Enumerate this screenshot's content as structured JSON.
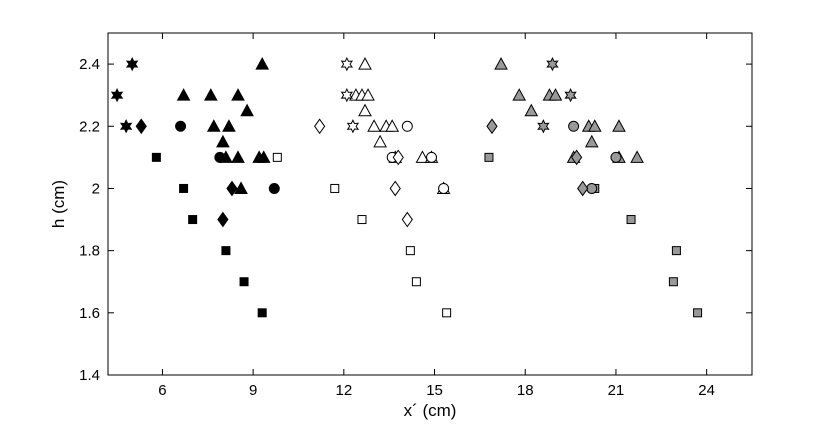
{
  "chart_data": {
    "type": "scatter",
    "xlabel": "x´ (cm)",
    "ylabel": "h (cm)",
    "xlim": [
      4.2,
      25.5
    ],
    "ylim": [
      1.4,
      2.5
    ],
    "x_ticks": [
      6,
      9,
      12,
      15,
      18,
      21,
      24
    ],
    "y_ticks": [
      1.4,
      1.6,
      1.8,
      2.0,
      2.2,
      2.4
    ],
    "x_tick_labels": [
      "6",
      "9",
      "12",
      "15",
      "18",
      "21",
      "24"
    ],
    "y_tick_labels": [
      "1.4",
      "1.6",
      "1.8",
      "2",
      "2.2",
      "2.4"
    ],
    "grid": false,
    "colors": {
      "filled": "#000000",
      "gray": "#999999",
      "open": "#ffffff",
      "edge": "#000000"
    },
    "series": [
      {
        "marker": "square",
        "fill": "filled",
        "points": [
          [
            5.8,
            2.1
          ],
          [
            6.7,
            2.0
          ],
          [
            7.0,
            1.9
          ],
          [
            8.1,
            1.8
          ],
          [
            8.7,
            1.7
          ],
          [
            9.3,
            1.6
          ]
        ]
      },
      {
        "marker": "triangle",
        "fill": "filled",
        "points": [
          [
            6.7,
            2.3
          ],
          [
            7.6,
            2.3
          ],
          [
            8.5,
            2.3
          ],
          [
            9.3,
            2.4
          ],
          [
            7.7,
            2.2
          ],
          [
            8.2,
            2.2
          ],
          [
            8.8,
            2.25
          ],
          [
            8.0,
            2.15
          ],
          [
            8.1,
            2.1
          ],
          [
            8.5,
            2.1
          ],
          [
            9.2,
            2.1
          ],
          [
            9.35,
            2.1
          ],
          [
            8.6,
            2.0
          ]
        ]
      },
      {
        "marker": "circle",
        "fill": "filled",
        "points": [
          [
            6.6,
            2.2
          ],
          [
            7.9,
            2.1
          ],
          [
            9.7,
            2.0
          ]
        ]
      },
      {
        "marker": "diamond",
        "fill": "filled",
        "points": [
          [
            5.3,
            2.2
          ],
          [
            8.0,
            1.9
          ],
          [
            8.3,
            2.0
          ]
        ]
      },
      {
        "marker": "hexagram",
        "fill": "filled",
        "points": [
          [
            4.5,
            2.3
          ],
          [
            5.0,
            2.4
          ],
          [
            4.8,
            2.2
          ]
        ]
      },
      {
        "marker": "square",
        "fill": "open",
        "points": [
          [
            9.8,
            2.1
          ],
          [
            11.7,
            2.0
          ],
          [
            12.6,
            1.9
          ],
          [
            14.2,
            1.8
          ],
          [
            14.4,
            1.7
          ],
          [
            15.4,
            1.6
          ]
        ]
      },
      {
        "marker": "triangle",
        "fill": "open",
        "points": [
          [
            12.7,
            2.4
          ],
          [
            12.4,
            2.3
          ],
          [
            12.6,
            2.3
          ],
          [
            12.8,
            2.3
          ],
          [
            12.7,
            2.25
          ],
          [
            13.0,
            2.2
          ],
          [
            13.4,
            2.2
          ],
          [
            13.6,
            2.2
          ],
          [
            13.2,
            2.15
          ],
          [
            13.7,
            2.1
          ],
          [
            14.6,
            2.1
          ],
          [
            14.9,
            2.1
          ],
          [
            15.3,
            2.0
          ]
        ]
      },
      {
        "marker": "circle",
        "fill": "open",
        "points": [
          [
            14.1,
            2.2
          ],
          [
            13.6,
            2.1
          ],
          [
            14.9,
            2.1
          ],
          [
            15.3,
            2.0
          ]
        ]
      },
      {
        "marker": "diamond",
        "fill": "open",
        "points": [
          [
            11.2,
            2.2
          ],
          [
            13.8,
            2.1
          ],
          [
            13.7,
            2.0
          ],
          [
            14.1,
            1.9
          ]
        ]
      },
      {
        "marker": "hexagram",
        "fill": "open",
        "points": [
          [
            12.1,
            2.4
          ],
          [
            12.1,
            2.3
          ],
          [
            12.3,
            2.2
          ]
        ]
      },
      {
        "marker": "square",
        "fill": "gray",
        "points": [
          [
            16.8,
            2.1
          ],
          [
            20.3,
            2.0
          ],
          [
            21.5,
            1.9
          ],
          [
            23.0,
            1.8
          ],
          [
            22.9,
            1.7
          ],
          [
            23.7,
            1.6
          ]
        ]
      },
      {
        "marker": "triangle",
        "fill": "gray",
        "points": [
          [
            17.2,
            2.4
          ],
          [
            17.8,
            2.3
          ],
          [
            18.8,
            2.3
          ],
          [
            19.0,
            2.3
          ],
          [
            18.2,
            2.25
          ],
          [
            20.1,
            2.2
          ],
          [
            20.3,
            2.2
          ],
          [
            21.1,
            2.2
          ],
          [
            19.6,
            2.1
          ],
          [
            20.2,
            2.15
          ],
          [
            21.1,
            2.1
          ],
          [
            21.7,
            2.1
          ]
        ]
      },
      {
        "marker": "circle",
        "fill": "gray",
        "points": [
          [
            19.6,
            2.2
          ],
          [
            21.0,
            2.1
          ],
          [
            20.2,
            2.0
          ]
        ]
      },
      {
        "marker": "diamond",
        "fill": "gray",
        "points": [
          [
            16.9,
            2.2
          ],
          [
            19.7,
            2.1
          ],
          [
            19.9,
            2.0
          ]
        ]
      },
      {
        "marker": "hexagram",
        "fill": "gray",
        "points": [
          [
            18.9,
            2.4
          ],
          [
            19.5,
            2.3
          ],
          [
            18.6,
            2.2
          ]
        ]
      }
    ]
  }
}
